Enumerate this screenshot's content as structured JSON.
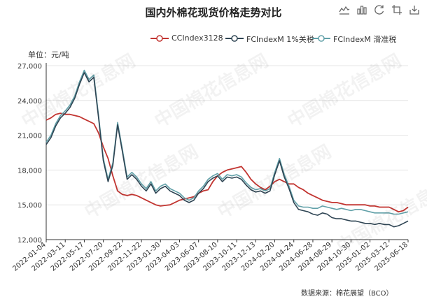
{
  "title": "国内外棉花现货价格走势对比",
  "toolbox": [
    "line-chart-icon",
    "bar-chart-icon",
    "refresh-icon",
    "crop-icon",
    "download-icon"
  ],
  "unit_label": "单位：元/吨",
  "source": "数据来源：棉花展望（BCO）",
  "watermark": "中国棉花信息网",
  "colors": {
    "cc": "#c23531",
    "fc1": "#2f4554",
    "fc2": "#61a0a8",
    "grid": "#e4e4e4",
    "axis": "#333333"
  },
  "chart_data": {
    "type": "line",
    "ylim": [
      12000,
      27000
    ],
    "yticks": [
      "12,000",
      "15,000",
      "18,000",
      "21,000",
      "24,000",
      "27,000"
    ],
    "ytick_values": [
      12000,
      15000,
      18000,
      21000,
      24000,
      27000
    ],
    "categories": [
      "2022-01-04",
      "2022-03-11",
      "2022-05-17",
      "2022-07-20",
      "2022-09-22",
      "2022-11-22",
      "2023-01-30",
      "2023-04-03",
      "2023-06-07",
      "2023-08-10",
      "2023-10-11",
      "2023-12-13",
      "2024-02-20",
      "2024-04-24",
      "2024-06-28",
      "2024-08-29",
      "2024-10-30",
      "2025-01-02",
      "2025-03-12",
      "2025-06-18"
    ],
    "x": [
      0,
      0.25,
      0.5,
      0.75,
      1,
      1.25,
      1.5,
      1.75,
      2,
      2.25,
      2.5,
      2.75,
      3,
      3.25,
      3.5,
      3.75,
      4,
      4.25,
      4.5,
      4.75,
      5,
      5.25,
      5.5,
      5.75,
      6,
      6.25,
      6.5,
      6.75,
      7,
      7.25,
      7.5,
      7.75,
      8,
      8.25,
      8.5,
      8.75,
      9,
      9.25,
      9.5,
      9.75,
      10,
      10.25,
      10.5,
      10.75,
      11,
      11.25,
      11.5,
      11.75,
      12,
      12.25,
      12.5,
      12.75,
      13,
      13.25,
      13.5,
      13.75,
      14,
      14.25,
      14.5,
      14.75,
      15,
      15.25,
      15.5,
      15.75,
      16,
      16.25,
      16.5,
      16.75,
      17,
      17.25,
      17.5,
      17.75,
      18,
      18.25,
      18.5,
      18.75,
      19
    ],
    "series": [
      {
        "name": "CCIndex3128",
        "color": "#c23531",
        "values": [
          22300,
          22500,
          22800,
          22900,
          22800,
          22800,
          22700,
          22600,
          22400,
          22200,
          22000,
          21200,
          20000,
          19000,
          17500,
          16200,
          15900,
          15800,
          15900,
          15800,
          15600,
          15400,
          15200,
          15000,
          14900,
          14950,
          15000,
          15200,
          15400,
          15500,
          15600,
          15700,
          16000,
          16200,
          16300,
          17000,
          17500,
          17800,
          18000,
          18100,
          18200,
          18300,
          17800,
          17200,
          16800,
          16500,
          16300,
          16600,
          17000,
          17200,
          17000,
          16800,
          16800,
          16500,
          16300,
          16000,
          15800,
          15600,
          15400,
          15300,
          15200,
          15200,
          15100,
          15000,
          15000,
          15000,
          15000,
          15000,
          14900,
          14900,
          14800,
          14800,
          14800,
          14600,
          14400,
          14500,
          14800
        ]
      },
      {
        "name": "FCIndexM 1%关税",
        "color": "#2f4554",
        "values": [
          20200,
          20800,
          21800,
          22500,
          22900,
          23400,
          24200,
          25400,
          26400,
          25600,
          26000,
          22500,
          18800,
          17000,
          18400,
          21900,
          19600,
          17200,
          17600,
          17200,
          16600,
          16200,
          16800,
          16000,
          16400,
          16600,
          16200,
          16000,
          15800,
          15400,
          15200,
          15400,
          16000,
          16400,
          17000,
          17300,
          17500,
          17000,
          17400,
          17300,
          17400,
          17200,
          16700,
          16300,
          16100,
          16200,
          16000,
          16200,
          17600,
          18800,
          17400,
          16400,
          15200,
          14600,
          14500,
          14400,
          14200,
          14100,
          14300,
          14200,
          13900,
          13800,
          13800,
          13700,
          13600,
          13600,
          13500,
          13400,
          13400,
          13300,
          13400,
          13300,
          13300,
          13100,
          13200,
          13400,
          13600
        ]
      },
      {
        "name": "FCIndexM 滑准税",
        "color": "#61a0a8",
        "values": [
          20400,
          21000,
          22000,
          22700,
          23100,
          23600,
          24400,
          25600,
          26600,
          25800,
          26200,
          22700,
          19000,
          17200,
          18600,
          22100,
          19800,
          17400,
          17800,
          17400,
          16800,
          16400,
          17000,
          16200,
          16600,
          16800,
          16400,
          16200,
          16000,
          15600,
          15400,
          15600,
          16200,
          16600,
          17200,
          17500,
          17700,
          17200,
          17600,
          17500,
          17600,
          17400,
          16900,
          16500,
          16300,
          16400,
          16200,
          16400,
          17800,
          19000,
          17600,
          16600,
          15400,
          14900,
          14800,
          14800,
          14700,
          14700,
          14900,
          14800,
          14700,
          14600,
          14700,
          14600,
          14500,
          14600,
          14600,
          14500,
          14400,
          14300,
          14300,
          14300,
          14300,
          14200,
          14200,
          14300,
          14400
        ]
      }
    ]
  }
}
